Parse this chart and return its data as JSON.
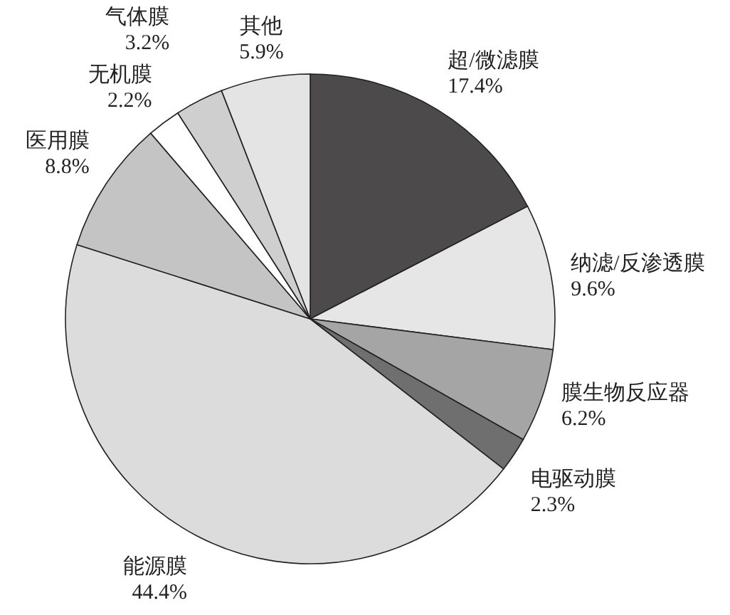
{
  "chart_data": {
    "type": "pie",
    "categories": [
      "超/微滤膜",
      "纳滤/反渗透膜",
      "膜生物反应器",
      "电驱动膜",
      "能源膜",
      "医用膜",
      "无机膜",
      "气体膜",
      "其他"
    ],
    "values": [
      17.4,
      9.6,
      6.2,
      2.3,
      44.4,
      8.8,
      2.2,
      3.2,
      5.9
    ],
    "value_labels": [
      "17.4%",
      "9.6%",
      "6.2%",
      "2.3%",
      "44.4%",
      "8.8%",
      "2.2%",
      "3.2%",
      "5.9%"
    ],
    "colors": [
      "#4d4a4b",
      "#e6e6e6",
      "#a5a5a5",
      "#6f6f6f",
      "#dcdcdc",
      "#c4c4c4",
      "#ffffff",
      "#cfcfcf",
      "#e4e4e4"
    ]
  }
}
